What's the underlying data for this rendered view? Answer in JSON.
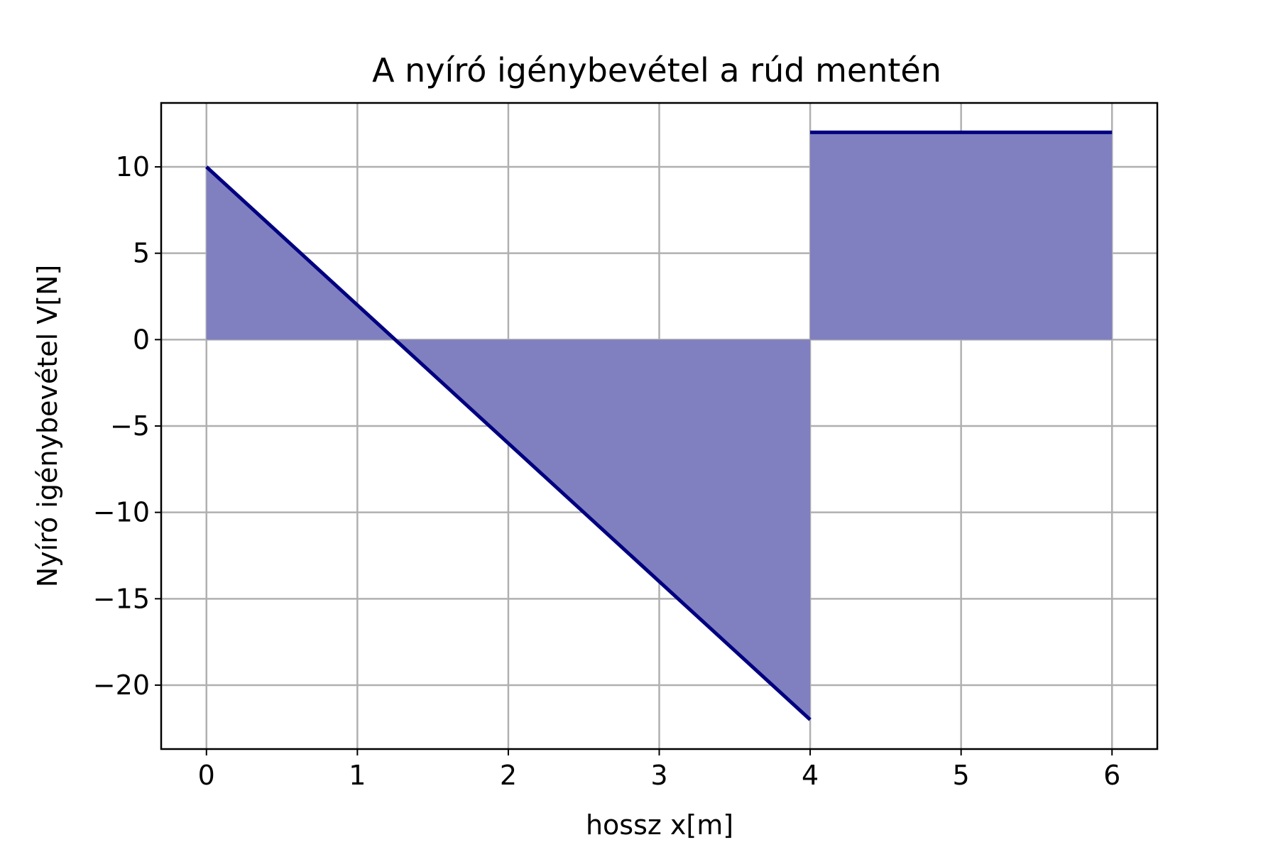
{
  "chart_data": {
    "type": "area",
    "title": "A nyíró igénybevétel a rúd mentén",
    "xlabel": "hossz x[m]",
    "ylabel": "Nyíró igénybevétel V[N]",
    "xlim": [
      -0.3,
      6.3
    ],
    "ylim": [
      -23.7,
      13.7
    ],
    "xticks": [
      0,
      1,
      2,
      3,
      4,
      5,
      6
    ],
    "xtick_labels": [
      "0",
      "1",
      "2",
      "3",
      "4",
      "5",
      "6"
    ],
    "yticks": [
      10,
      5,
      0,
      -5,
      -10,
      -15,
      -20
    ],
    "ytick_labels": [
      "10",
      "5",
      "0",
      "−5",
      "−10",
      "−15",
      "−20"
    ],
    "grid": true,
    "colors": {
      "line": "#000080",
      "fill": "#8080c0",
      "grid": "#b0b0b0"
    },
    "series": [
      {
        "segment": 1,
        "x": [
          0,
          4
        ],
        "y": [
          10,
          -22
        ]
      },
      {
        "segment": 2,
        "x": [
          4,
          6
        ],
        "y": [
          12,
          12
        ]
      }
    ]
  }
}
